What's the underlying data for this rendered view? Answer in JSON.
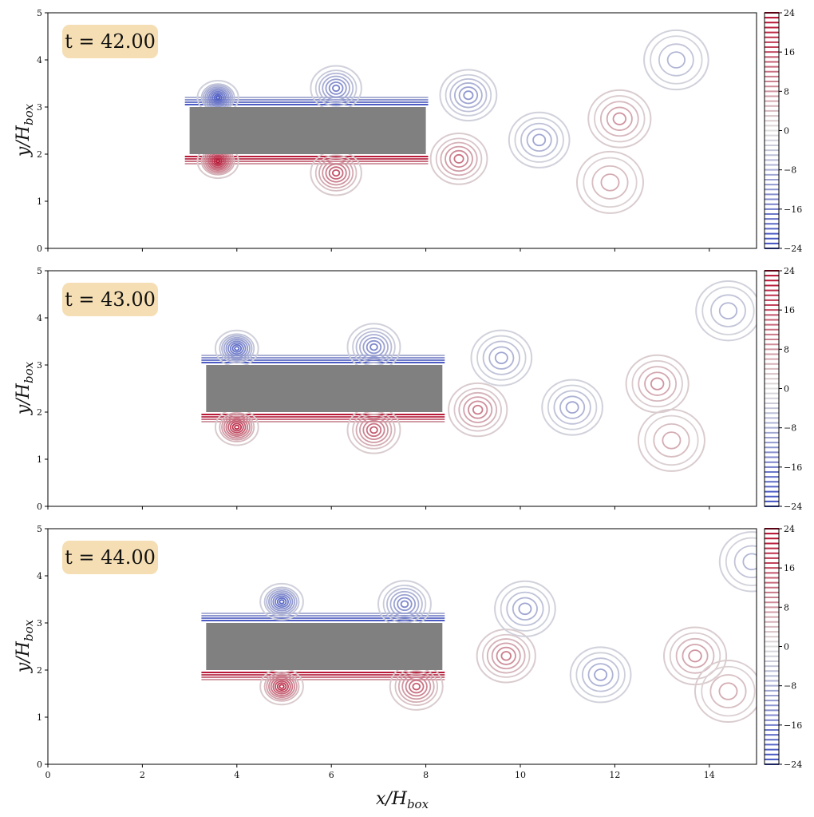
{
  "chart_data": {
    "type": "contour",
    "xlabel": "x/H",
    "xlabel_sub": "box",
    "ylabel": "y/H",
    "ylabel_sub": "box",
    "xlim": [
      0,
      15
    ],
    "ylim": [
      0,
      5
    ],
    "xticks": [
      0,
      2,
      4,
      6,
      8,
      10,
      12,
      14
    ],
    "yticks": [
      0,
      1,
      2,
      3,
      4,
      5
    ],
    "colorbar": {
      "min": -24,
      "max": 24,
      "ticks": [
        24,
        16,
        8,
        0,
        -8,
        -16,
        -24
      ],
      "levels": 49,
      "colormap": "coolwarm",
      "colors": {
        "neg": "#3b4cc0",
        "mid": "#dddddd",
        "pos": "#b40426"
      }
    },
    "box_color": "#808080",
    "panels": [
      {
        "time_label": "t = 42.00",
        "box": {
          "x0": 3.0,
          "x1": 8.0,
          "y0": 2.0,
          "y1": 3.0
        },
        "vortices": [
          {
            "x": 3.6,
            "y": 3.2,
            "sign": -1,
            "strength": 0.95
          },
          {
            "x": 3.6,
            "y": 1.85,
            "sign": 1,
            "strength": 0.95
          },
          {
            "x": 6.1,
            "y": 3.4,
            "sign": -1,
            "strength": 0.7
          },
          {
            "x": 6.1,
            "y": 1.6,
            "sign": 1,
            "strength": 0.7
          },
          {
            "x": 8.9,
            "y": 3.25,
            "sign": -1,
            "strength": 0.55
          },
          {
            "x": 8.7,
            "y": 1.9,
            "sign": 1,
            "strength": 0.55
          },
          {
            "x": 10.4,
            "y": 2.3,
            "sign": -1,
            "strength": 0.45
          },
          {
            "x": 12.1,
            "y": 2.75,
            "sign": 1,
            "strength": 0.4
          },
          {
            "x": 11.9,
            "y": 1.4,
            "sign": 1,
            "strength": 0.3
          },
          {
            "x": 13.3,
            "y": 4.0,
            "sign": -1,
            "strength": 0.35
          }
        ]
      },
      {
        "time_label": "t = 43.00",
        "box": {
          "x0": 3.35,
          "x1": 8.35,
          "y0": 2.0,
          "y1": 3.0
        },
        "vortices": [
          {
            "x": 4.0,
            "y": 3.35,
            "sign": -1,
            "strength": 0.9
          },
          {
            "x": 4.0,
            "y": 1.68,
            "sign": 1,
            "strength": 0.9
          },
          {
            "x": 6.9,
            "y": 3.38,
            "sign": -1,
            "strength": 0.65
          },
          {
            "x": 6.9,
            "y": 1.62,
            "sign": 1,
            "strength": 0.65
          },
          {
            "x": 9.1,
            "y": 2.05,
            "sign": 1,
            "strength": 0.5
          },
          {
            "x": 9.6,
            "y": 3.15,
            "sign": -1,
            "strength": 0.45
          },
          {
            "x": 11.1,
            "y": 2.1,
            "sign": -1,
            "strength": 0.45
          },
          {
            "x": 12.9,
            "y": 2.6,
            "sign": 1,
            "strength": 0.4
          },
          {
            "x": 13.2,
            "y": 1.4,
            "sign": 1,
            "strength": 0.3
          },
          {
            "x": 14.4,
            "y": 4.15,
            "sign": -1,
            "strength": 0.35
          }
        ]
      },
      {
        "time_label": "t = 44.00",
        "box": {
          "x0": 3.35,
          "x1": 8.35,
          "y0": 2.0,
          "y1": 3.0
        },
        "vortices": [
          {
            "x": 4.95,
            "y": 3.45,
            "sign": -1,
            "strength": 0.9
          },
          {
            "x": 4.95,
            "y": 1.65,
            "sign": 1,
            "strength": 0.9
          },
          {
            "x": 7.55,
            "y": 3.4,
            "sign": -1,
            "strength": 0.65
          },
          {
            "x": 7.8,
            "y": 1.65,
            "sign": 1,
            "strength": 0.65
          },
          {
            "x": 9.7,
            "y": 2.3,
            "sign": 1,
            "strength": 0.5
          },
          {
            "x": 10.1,
            "y": 3.3,
            "sign": -1,
            "strength": 0.45
          },
          {
            "x": 11.7,
            "y": 1.9,
            "sign": -1,
            "strength": 0.45
          },
          {
            "x": 13.7,
            "y": 2.3,
            "sign": 1,
            "strength": 0.4
          },
          {
            "x": 14.4,
            "y": 1.55,
            "sign": 1,
            "strength": 0.3
          },
          {
            "x": 14.9,
            "y": 4.3,
            "sign": -1,
            "strength": 0.35
          }
        ]
      }
    ]
  }
}
